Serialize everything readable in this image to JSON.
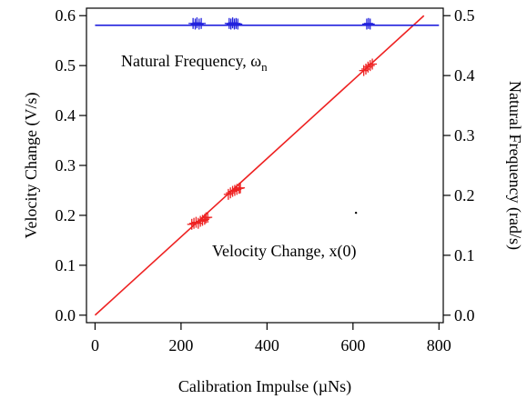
{
  "chart_data": {
    "type": "scatter",
    "title": "",
    "xlabel": "Calibration Impulse (µNs)",
    "ylabel_left": "Velocity Change (V/s)",
    "ylabel_right": "Natural Frequency (rad/s)",
    "xlim": [
      -20,
      810
    ],
    "ylim_left": [
      -0.015,
      0.615
    ],
    "ylim_right": [
      -0.0125,
      0.5125
    ],
    "x_ticks": [
      0,
      200,
      400,
      600,
      800
    ],
    "x_tick_labels": [
      "0",
      "200",
      "400",
      "600",
      "800"
    ],
    "y_left_ticks": [
      0.0,
      0.1,
      0.2,
      0.3,
      0.4,
      0.5,
      0.6
    ],
    "y_left_tick_labels": [
      "0.0",
      "0.1",
      "0.2",
      "0.3",
      "0.4",
      "0.5",
      "0.6"
    ],
    "y_right_ticks": [
      0.0,
      0.1,
      0.2,
      0.3,
      0.4,
      0.5
    ],
    "y_right_tick_labels": [
      "0.0",
      "0.1",
      "0.2",
      "0.3",
      "0.4",
      "0.5"
    ],
    "grid": false,
    "annotations": {
      "frequency_label": "Natural Frequency, ω",
      "frequency_subscript": "n",
      "velocity_label": "Velocity Change, x(0)"
    },
    "series": [
      {
        "axis": "left",
        "color": "#ee2222",
        "marker": "plus",
        "x": [
          225,
          230,
          235,
          240,
          245,
          250,
          255,
          258,
          262,
          310,
          315,
          320,
          325,
          330,
          335,
          338,
          625,
          630,
          635,
          640,
          645
        ],
        "y": [
          0.182,
          0.184,
          0.186,
          0.184,
          0.188,
          0.19,
          0.192,
          0.195,
          0.196,
          0.242,
          0.245,
          0.248,
          0.25,
          0.252,
          0.254,
          0.255,
          0.49,
          0.493,
          0.497,
          0.5,
          0.503
        ]
      },
      {
        "axis": "right",
        "color": "#2222dd",
        "marker": "plus",
        "x": [
          228,
          233,
          237,
          242,
          247,
          312,
          316,
          320,
          324,
          328,
          332,
          632,
          636,
          640
        ],
        "y": [
          0.487,
          0.486,
          0.488,
          0.486,
          0.487,
          0.487,
          0.486,
          0.488,
          0.486,
          0.487,
          0.486,
          0.486,
          0.487,
          0.486
        ]
      }
    ],
    "fit_lines": [
      {
        "axis": "left",
        "color": "#ee2222",
        "x": [
          0,
          765
        ],
        "y": [
          0.0,
          0.6
        ]
      },
      {
        "axis": "right",
        "color": "#2222dd",
        "x": [
          0,
          800
        ],
        "y": [
          0.484,
          0.484
        ]
      }
    ]
  }
}
